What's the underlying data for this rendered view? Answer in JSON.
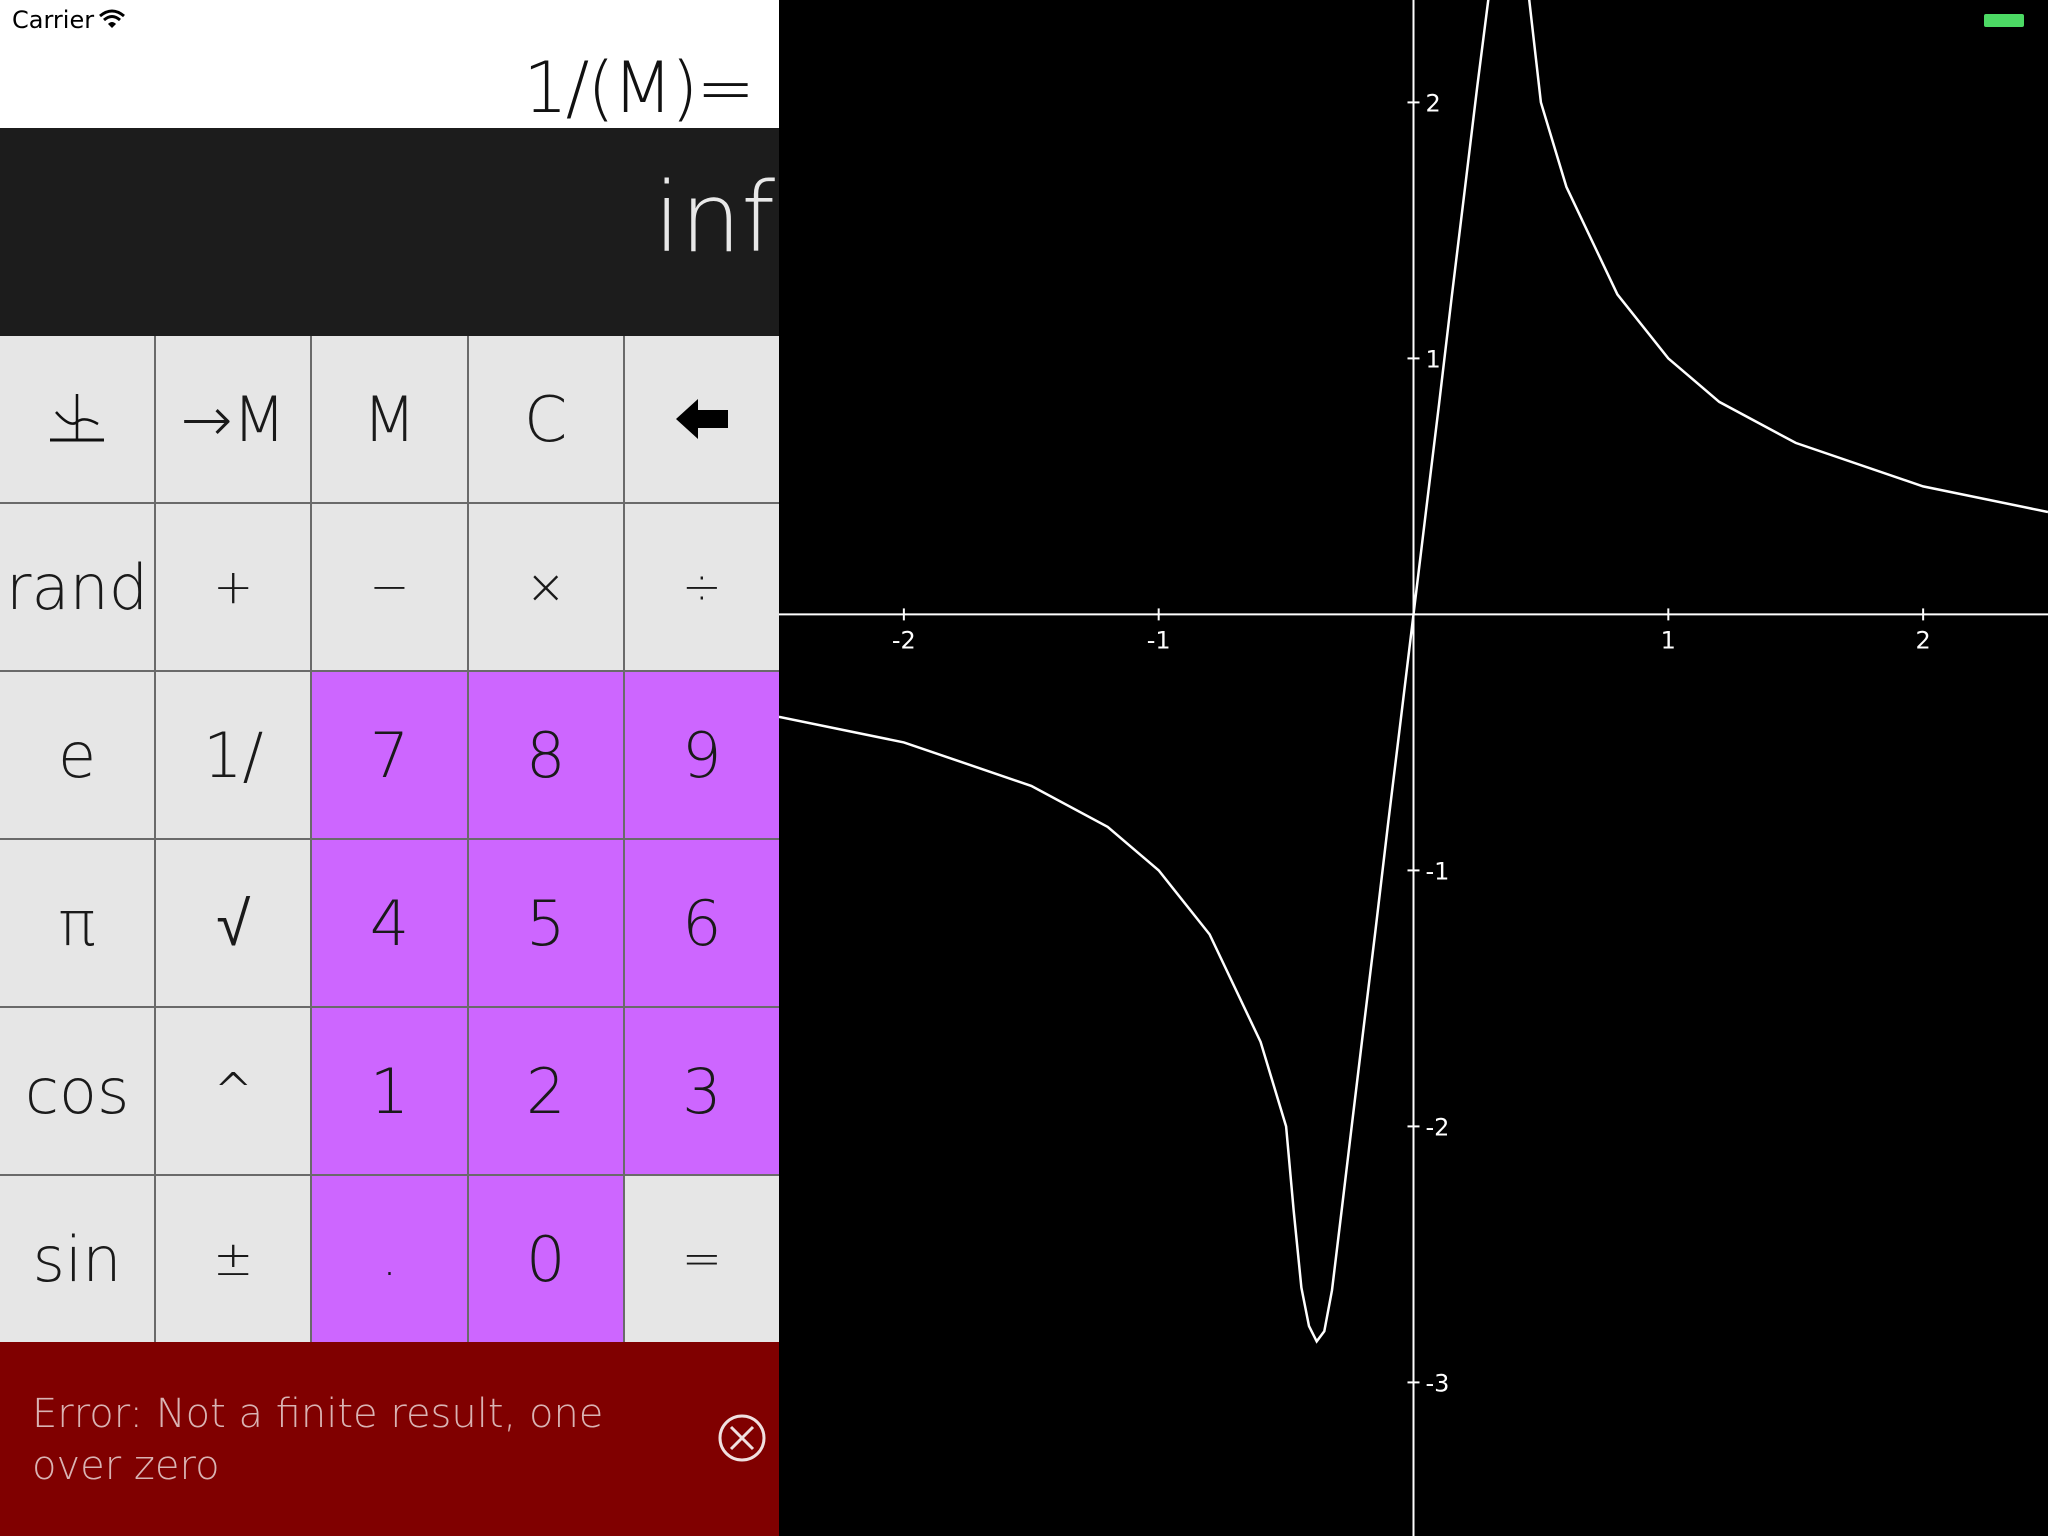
{
  "status": {
    "carrier": "Carrier"
  },
  "display": {
    "expression": "1/(M)=",
    "result": "inf"
  },
  "keys": [
    [
      {
        "label": "",
        "name": "graph-key",
        "icon": "graph-icon"
      },
      {
        "label": "→M",
        "name": "store-memory-key"
      },
      {
        "label": "M",
        "name": "memory-key"
      },
      {
        "label": "C",
        "name": "clear-key"
      },
      {
        "label": "",
        "name": "backspace-key",
        "icon": "backspace-arrow-icon"
      }
    ],
    [
      {
        "label": "rand",
        "name": "rand-key"
      },
      {
        "label": "+",
        "name": "plus-key"
      },
      {
        "label": "−",
        "name": "minus-key"
      },
      {
        "label": "×",
        "name": "multiply-key"
      },
      {
        "label": "÷",
        "name": "divide-key"
      }
    ],
    [
      {
        "label": "e",
        "name": "e-key"
      },
      {
        "label": "1/",
        "name": "reciprocal-key"
      },
      {
        "label": "7",
        "name": "digit-7-key",
        "num": true
      },
      {
        "label": "8",
        "name": "digit-8-key",
        "num": true
      },
      {
        "label": "9",
        "name": "digit-9-key",
        "num": true
      }
    ],
    [
      {
        "label": "π",
        "name": "pi-key"
      },
      {
        "label": "√",
        "name": "sqrt-key"
      },
      {
        "label": "4",
        "name": "digit-4-key",
        "num": true
      },
      {
        "label": "5",
        "name": "digit-5-key",
        "num": true
      },
      {
        "label": "6",
        "name": "digit-6-key",
        "num": true
      }
    ],
    [
      {
        "label": "cos",
        "name": "cos-key"
      },
      {
        "label": "^",
        "name": "power-key"
      },
      {
        "label": "1",
        "name": "digit-1-key",
        "num": true
      },
      {
        "label": "2",
        "name": "digit-2-key",
        "num": true
      },
      {
        "label": "3",
        "name": "digit-3-key",
        "num": true
      }
    ],
    [
      {
        "label": "sin",
        "name": "sin-key"
      },
      {
        "label": "±",
        "name": "sign-key"
      },
      {
        "label": ".",
        "name": "decimal-key",
        "num": true
      },
      {
        "label": "0",
        "name": "digit-0-key",
        "num": true
      },
      {
        "label": "=",
        "name": "equals-key"
      }
    ]
  ],
  "error": {
    "message": "Error: Not a finite result, one over zero"
  },
  "colors": {
    "digit_key": "#cd66ff",
    "function_key": "#e6e6e6",
    "error_bg": "#800000",
    "display_bg": "#1c1c1c",
    "battery": "#4cd964"
  },
  "chart_data": {
    "type": "line",
    "x_ticks": [
      "-2",
      "-1",
      "1",
      "2"
    ],
    "y_ticks": [
      "2",
      "1",
      "-1",
      "-2",
      "-3"
    ],
    "xlim": [
      -2.49,
      2.49
    ],
    "ylim": [
      -3.6,
      2.4
    ],
    "grid": false,
    "series": [
      {
        "x": [
          -2.49,
          -2.0,
          -1.5,
          -1.2,
          -1.0,
          -0.8,
          -0.6,
          -0.5,
          -0.47,
          -0.44,
          -0.41,
          -0.38,
          -0.35,
          -0.32,
          -0.28,
          -0.24,
          -0.2,
          -0.15,
          -0.1,
          -0.05,
          0.0,
          0.05,
          0.1,
          0.15,
          0.2,
          0.25,
          0.3,
          0.35,
          0.42,
          0.5,
          0.6,
          0.8,
          1.0,
          1.2,
          1.5,
          2.0,
          2.49
        ],
        "y": [
          -0.4,
          -0.5,
          -0.67,
          -0.83,
          -1.0,
          -1.25,
          -1.67,
          -2.0,
          -2.33,
          -2.63,
          -2.78,
          -2.84,
          -2.8,
          -2.64,
          -2.31,
          -1.98,
          -1.65,
          -1.24,
          -0.82,
          -0.41,
          0.0,
          0.41,
          0.82,
          1.24,
          1.65,
          2.06,
          2.45,
          2.7,
          2.7,
          2.0,
          1.67,
          1.25,
          1.0,
          0.83,
          0.67,
          0.5,
          0.4
        ]
      }
    ]
  }
}
